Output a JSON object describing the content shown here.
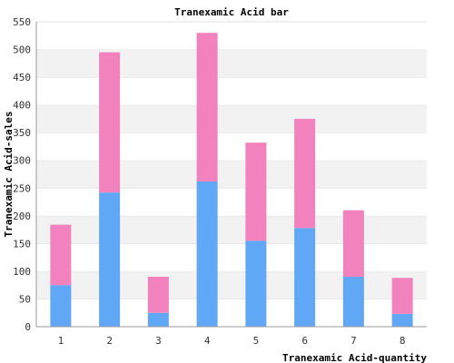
{
  "chart_data": {
    "type": "bar",
    "stacked": true,
    "title": "Tranexamic Acid bar",
    "xlabel": "Tranexamic Acid-quantity",
    "ylabel": "Tranexamic Acid-sales",
    "categories": [
      "1",
      "2",
      "3",
      "4",
      "5",
      "6",
      "7",
      "8"
    ],
    "ylim": [
      0,
      550
    ],
    "yticks": [
      "0",
      "50",
      "100",
      "150",
      "200",
      "250",
      "300",
      "350",
      "400",
      "450",
      "500",
      "550"
    ],
    "grid": "horizontal bands",
    "series": [
      {
        "values": [
          75,
          242,
          25,
          262,
          155,
          178,
          90,
          23
        ],
        "color": "#60a8f6"
      },
      {
        "values": [
          109,
          253,
          65,
          268,
          177,
          197,
          120,
          65
        ],
        "color": "#f282bd"
      }
    ],
    "band_colors": [
      "#ffffff",
      "#f2f2f2"
    ]
  }
}
